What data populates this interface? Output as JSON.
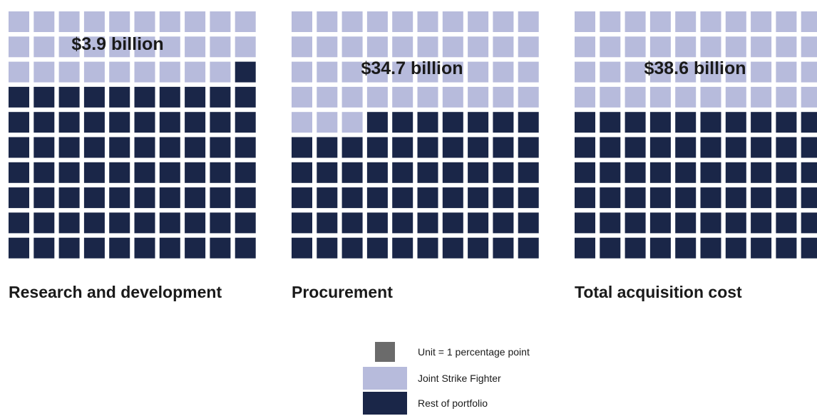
{
  "chart_data": [
    {
      "type": "waffle",
      "title": "Research and development",
      "value_label": "$3.9 billion",
      "grid": [
        10,
        10
      ],
      "values": {
        "Joint Strike Fighter": 29,
        "Rest of portfolio": 71
      }
    },
    {
      "type": "waffle",
      "title": "Procurement",
      "value_label": "$34.7 billion",
      "grid": [
        10,
        10
      ],
      "values": {
        "Joint Strike Fighter": 43,
        "Rest of portfolio": 57
      }
    },
    {
      "type": "waffle",
      "title": "Total acquisition cost",
      "value_label": "$38.6 billion",
      "grid": [
        10,
        10
      ],
      "values": {
        "Joint Strike Fighter": 40,
        "Rest of portfolio": 60
      }
    }
  ],
  "legend": {
    "unit_label": "Unit = 1 percentage point",
    "items": [
      {
        "name": "Joint Strike Fighter",
        "color": "#b7bbdc"
      },
      {
        "name": "Rest of portfolio",
        "color": "#1a2648"
      }
    ]
  },
  "colors": {
    "unit": "#6b6b6b",
    "jsf": "#b7bbdc",
    "rest": "#1a2648"
  }
}
